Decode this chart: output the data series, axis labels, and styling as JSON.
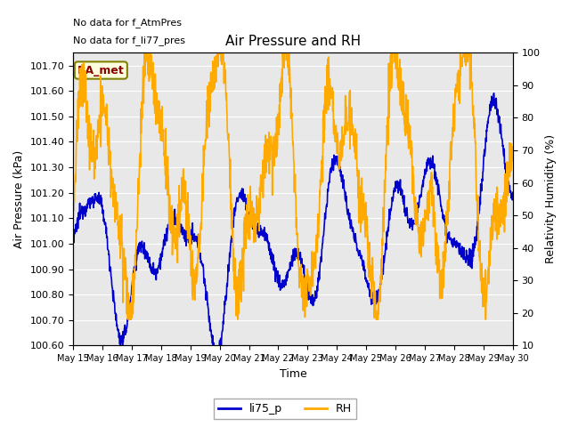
{
  "title": "Air Pressure and RH",
  "xlabel": "Time",
  "ylabel_left": "Air Pressure (kPa)",
  "ylabel_right": "Relativity Humidity (%)",
  "annotation_lines": [
    "No data for f_AtmPres",
    "No data for f_li77_pres"
  ],
  "station_label": "BA_met",
  "ylim_left": [
    100.6,
    101.75
  ],
  "ylim_right": [
    10,
    100
  ],
  "yticks_left": [
    100.6,
    100.7,
    100.8,
    100.9,
    101.0,
    101.1,
    101.2,
    101.3,
    101.4,
    101.5,
    101.6,
    101.7
  ],
  "yticks_right": [
    10,
    20,
    30,
    40,
    50,
    60,
    70,
    80,
    90,
    100
  ],
  "xtick_labels": [
    "May 15",
    "May 16",
    "May 17",
    "May 18",
    "May 19",
    "May 20",
    "May 21",
    "May 22",
    "May 23",
    "May 24",
    "May 25",
    "May 26",
    "May 27",
    "May 28",
    "May 29",
    "May 30"
  ],
  "line_li75p_color": "#0000cc",
  "line_rh_color": "#ffaa00",
  "line_width": 1.2,
  "background_color": "#e8e8e8",
  "grid_color": "white",
  "legend_entries": [
    "li75_p",
    "RH"
  ],
  "legend_colors": [
    "#0000cc",
    "#ffaa00"
  ],
  "fig_width": 6.4,
  "fig_height": 4.8,
  "dpi": 100
}
